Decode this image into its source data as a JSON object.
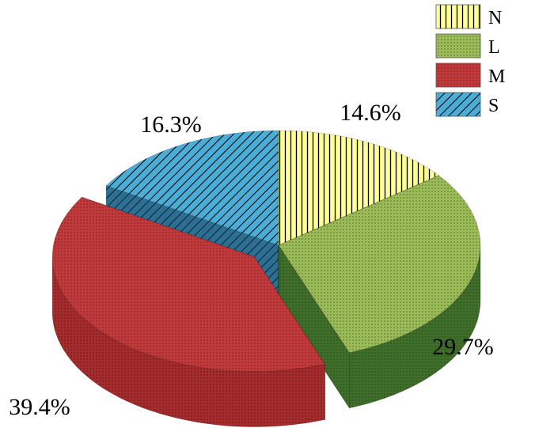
{
  "chart_data": {
    "type": "pie",
    "style": "3d-exploded",
    "title": "",
    "legend_position": "top-right",
    "slices": [
      {
        "name": "N",
        "value": 14.6,
        "label": "14.6%",
        "color": "#ffff99",
        "pattern": "vertical-lines"
      },
      {
        "name": "L",
        "value": 29.7,
        "label": "29.7%",
        "color": "#9bbb59",
        "pattern": "dots"
      },
      {
        "name": "M",
        "value": 39.4,
        "label": "39.4%",
        "color": "#c0393b",
        "pattern": "dots",
        "exploded": true
      },
      {
        "name": "S",
        "value": 16.3,
        "label": "16.3%",
        "color": "#4bacd6",
        "pattern": "diagonal-lines"
      }
    ]
  }
}
